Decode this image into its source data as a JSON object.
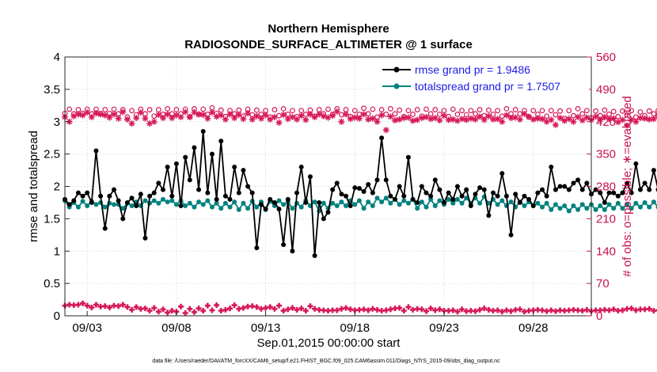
{
  "chart_data": {
    "type": "line",
    "title": "Northern Hemisphere",
    "subtitle": "RADIOSONDE_SURFACE_ALTIMETER @ 1 surface",
    "xlabel": "Sep.01,2015 00:00:00 start",
    "ylabel": "rmse and totalspread",
    "ylabel_right": "# of obs: o=possible; ∗=evaluated",
    "footer": "data file: /Users/raeder/DAI/ATM_forcXX/CAM6_setup/f.e21.FHIST_BGC.f09_025.CAM6assim.011/Diags_NTrS_2015-09/obs_diag_output.nc",
    "x_tick_labels": [
      "09/03",
      "09/08",
      "09/13",
      "09/18",
      "09/23",
      "09/28"
    ],
    "x_tick_values": [
      3,
      8,
      13,
      18,
      23,
      28
    ],
    "xlim": [
      1.75,
      31.25
    ],
    "ylim": [
      0,
      4
    ],
    "y_ticks": [
      0,
      0.5,
      1,
      1.5,
      2,
      2.5,
      3,
      3.5,
      4
    ],
    "y_tick_labels": [
      "0",
      "0.5",
      "1",
      "1.5",
      "2",
      "2.5",
      "3",
      "3.5",
      "4"
    ],
    "ylim_right": [
      0,
      560
    ],
    "y_ticks_right": [
      0,
      70,
      140,
      210,
      280,
      350,
      420,
      490,
      560
    ],
    "y_tick_labels_right": [
      "0",
      "70",
      "140",
      "210",
      "280",
      "350",
      "420",
      "490",
      "560"
    ],
    "grid": true,
    "legend_position": "top-right",
    "colors": {
      "rmse": "#000000",
      "spread": "#00827f",
      "obs": "#d6175a"
    },
    "x_step": 0.25,
    "x_start": 1.75,
    "series": [
      {
        "name": "rmse grand pr = 1.9486",
        "axis": "left",
        "values": [
          1.8,
          1.72,
          1.78,
          1.9,
          1.85,
          1.9,
          1.75,
          2.55,
          1.85,
          1.35,
          1.85,
          1.95,
          1.78,
          1.5,
          1.75,
          1.82,
          1.7,
          1.88,
          1.2,
          1.85,
          1.9,
          2.05,
          1.95,
          2.3,
          1.85,
          2.35,
          1.7,
          2.45,
          2.1,
          2.6,
          1.95,
          2.85,
          1.9,
          2.5,
          1.8,
          2.7,
          1.85,
          1.8,
          2.3,
          1.9,
          2.25,
          2.0,
          1.9,
          1.05,
          1.72,
          1.65,
          1.8,
          1.75,
          1.65,
          1.1,
          1.8,
          1.0,
          1.9,
          2.3,
          1.75,
          2.15,
          0.93,
          1.75,
          1.5,
          1.6,
          1.95,
          2.05,
          1.88,
          1.85,
          1.7,
          1.98,
          1.97,
          1.92,
          2.03,
          1.9,
          2.1,
          2.75,
          2.1,
          1.85,
          1.8,
          2.0,
          1.85,
          2.45,
          1.8,
          1.75,
          2.0,
          1.9,
          1.85,
          2.1,
          1.95,
          1.75,
          1.9,
          1.8,
          2.0,
          1.85,
          1.95,
          1.7,
          1.88,
          1.98,
          1.95,
          1.55,
          1.9,
          1.85,
          2.2,
          1.85,
          1.25,
          1.88,
          1.75,
          1.85,
          1.8,
          1.7,
          1.9,
          1.95,
          1.85,
          2.3,
          1.95,
          2.0,
          2.0,
          1.95,
          2.05,
          2.1,
          1.95,
          2.05,
          1.88,
          1.95,
          1.9,
          1.75,
          1.9,
          1.9,
          1.85,
          1.9,
          2.05,
          1.9,
          2.35,
          1.95,
          2.05,
          1.95,
          2.25,
          1.95,
          2.48,
          2.1,
          2.25,
          2.2,
          2.0,
          2.3,
          2.05,
          1.95,
          1.9,
          2.0,
          1.85,
          1.75,
          1.5,
          1.8,
          2.0,
          1.9,
          1.75,
          1.98,
          1.88,
          2.15,
          2.15,
          2.05,
          1.95,
          2.12,
          2.08,
          2.2,
          2.05,
          1.85,
          1.9,
          1.5,
          1.88,
          1.6,
          1.75,
          1.9,
          1.55,
          1.6
        ]
      },
      {
        "name": "totalspread grand pr = 1.7507",
        "axis": "left",
        "values": [
          1.78,
          1.68,
          1.75,
          1.68,
          1.77,
          1.7,
          1.77,
          1.72,
          1.75,
          1.68,
          1.74,
          1.72,
          1.72,
          1.66,
          1.74,
          1.7,
          1.76,
          1.7,
          1.78,
          1.74,
          1.78,
          1.74,
          1.8,
          1.76,
          1.78,
          1.72,
          1.78,
          1.7,
          1.74,
          1.68,
          1.76,
          1.72,
          1.78,
          1.68,
          1.74,
          1.66,
          1.74,
          1.68,
          1.76,
          1.64,
          1.74,
          1.66,
          1.77,
          1.68,
          1.76,
          1.64,
          1.77,
          1.7,
          1.78,
          1.72,
          1.76,
          1.66,
          1.74,
          1.68,
          1.78,
          1.7,
          1.76,
          1.62,
          1.74,
          1.66,
          1.74,
          1.7,
          1.76,
          1.7,
          1.78,
          1.72,
          1.78,
          1.66,
          1.76,
          1.7,
          1.82,
          1.76,
          1.82,
          1.74,
          1.8,
          1.72,
          1.78,
          1.74,
          1.8,
          1.66,
          1.76,
          1.68,
          1.8,
          1.7,
          1.78,
          1.72,
          1.8,
          1.74,
          1.8,
          1.74,
          1.82,
          1.74,
          1.82,
          1.74,
          1.84,
          1.74,
          1.8,
          1.72,
          1.78,
          1.7,
          1.76,
          1.68,
          1.76,
          1.7,
          1.76,
          1.7,
          1.74,
          1.68,
          1.74,
          1.64,
          1.72,
          1.66,
          1.7,
          1.62,
          1.7,
          1.64,
          1.72,
          1.66,
          1.72,
          1.64,
          1.7,
          1.64,
          1.72,
          1.66,
          1.74,
          1.66,
          1.72,
          1.66,
          1.74,
          1.68,
          1.75,
          1.68,
          1.76,
          1.68,
          1.76,
          1.7,
          1.78,
          1.7,
          1.76,
          1.68,
          1.74,
          1.66,
          1.74,
          1.64,
          1.72,
          1.62,
          1.68,
          1.64,
          1.7,
          1.66,
          1.72,
          1.66,
          1.74,
          1.66,
          1.72,
          1.68,
          1.74,
          1.68,
          1.74,
          1.66,
          1.76,
          1.64,
          1.72,
          1.62,
          1.7,
          1.64,
          1.72,
          1.76,
          1.74
        ]
      },
      {
        "name": "possible",
        "axis": "right",
        "marker": "circle",
        "values": [
          438,
          447,
          437,
          446,
          438,
          447,
          437,
          447,
          438,
          446,
          438,
          447,
          437,
          446,
          430,
          444,
          435,
          447,
          437,
          446,
          432,
          446,
          436,
          448,
          437,
          446,
          437,
          447,
          431,
          448,
          436,
          447,
          436,
          450,
          438,
          445,
          431,
          444,
          437,
          445,
          432,
          447,
          435,
          445,
          436,
          444,
          430,
          446,
          433,
          448,
          436,
          444,
          431,
          444,
          436,
          445,
          432,
          446,
          437,
          447,
          436,
          448,
          435,
          446,
          431,
          444,
          436,
          449,
          437,
          447,
          430,
          446,
          436,
          448,
          437,
          445,
          431,
          444,
          436,
          446,
          432,
          447,
          437,
          446,
          436,
          444,
          431,
          447,
          436,
          444,
          435,
          444,
          437,
          446,
          433,
          445,
          436,
          444,
          432,
          448,
          437,
          446,
          437,
          444,
          430,
          444,
          436,
          444,
          432,
          444,
          435,
          443,
          427,
          444,
          433,
          448,
          437,
          444,
          428,
          443,
          433,
          445,
          436,
          442,
          431,
          443,
          435,
          444,
          430,
          441,
          433,
          443,
          437,
          444,
          432,
          444,
          436,
          443,
          432,
          442,
          435,
          444,
          431,
          442,
          426,
          442,
          433,
          444,
          434,
          440,
          428,
          442,
          435,
          444,
          437,
          442,
          430,
          441,
          434,
          442,
          431,
          441,
          432,
          441,
          435,
          442,
          432,
          437
        ]
      },
      {
        "name": "evaluated",
        "axis": "right",
        "marker": "asterisk",
        "values": [
          430,
          420,
          432,
          436,
          434,
          440,
          430,
          438,
          436,
          434,
          429,
          436,
          427,
          441,
          425,
          416,
          428,
          440,
          427,
          416,
          420,
          435,
          428,
          436,
          428,
          434,
          430,
          441,
          430,
          440,
          436,
          435,
          427,
          440,
          431,
          434,
          425,
          436,
          428,
          435,
          426,
          438,
          425,
          432,
          427,
          434,
          425,
          430,
          418,
          435,
          426,
          430,
          425,
          433,
          424,
          436,
          430,
          436,
          432,
          429,
          433,
          442,
          420,
          436,
          426,
          429,
          427,
          436,
          425,
          427,
          420,
          434,
          402,
          431,
          423,
          425,
          428,
          429,
          422,
          424,
          428,
          430,
          426,
          428,
          423,
          433,
          424,
          425,
          422,
          426,
          424,
          427,
          425,
          431,
          424,
          432,
          425,
          426,
          420,
          434,
          428,
          429,
          425,
          437,
          431,
          425,
          427,
          426,
          420,
          424,
          413,
          428,
          422,
          426,
          420,
          430,
          423,
          429,
          424,
          431,
          424,
          430,
          426,
          427,
          419,
          424,
          412,
          424,
          420,
          428,
          427,
          425,
          426,
          433,
          424,
          425,
          420,
          422,
          417,
          428,
          414,
          426,
          418,
          425,
          419,
          422,
          416,
          427,
          417,
          432,
          428,
          426,
          430,
          431,
          421,
          425,
          427,
          434,
          426,
          426,
          420,
          423,
          416,
          425,
          421,
          430,
          419,
          424
        ]
      },
      {
        "name": "rejected",
        "axis": "right",
        "marker": "plus",
        "values": [
          22,
          24,
          23,
          24,
          27,
          22,
          18,
          24,
          20,
          21,
          18,
          22,
          21,
          24,
          19,
          13,
          19,
          15,
          16,
          11,
          17,
          9,
          14,
          7,
          11,
          9,
          20,
          6,
          15,
          8,
          16,
          11,
          22,
          12,
          23,
          11,
          13,
          16,
          23,
          15,
          17,
          20,
          21,
          19,
          15,
          17,
          19,
          15,
          22,
          11,
          14,
          17,
          13,
          16,
          11,
          21,
          15,
          13,
          12,
          11,
          12,
          12,
          15,
          17,
          14,
          12,
          13,
          14,
          12,
          15,
          13,
          11,
          12,
          14,
          16,
          17,
          11,
          19,
          13,
          15,
          14,
          10,
          16,
          12,
          14,
          11,
          11,
          12,
          9,
          14,
          10,
          11,
          10,
          13,
          16,
          13,
          11,
          12,
          9,
          12,
          10,
          13,
          14,
          9,
          11,
          12,
          13,
          12,
          10,
          12,
          10,
          12,
          11,
          12,
          13,
          12,
          11,
          13,
          10,
          12,
          12,
          13,
          12,
          14,
          11,
          12,
          15,
          16,
          12,
          14,
          14,
          15,
          11,
          12,
          13,
          12,
          11,
          12,
          14,
          12,
          16,
          18,
          16,
          20,
          18,
          17,
          16,
          14,
          12,
          13,
          11,
          12,
          9,
          11,
          12,
          9,
          18,
          20,
          21,
          20,
          22,
          23,
          22,
          21,
          24,
          18,
          20,
          34
        ]
      }
    ]
  }
}
